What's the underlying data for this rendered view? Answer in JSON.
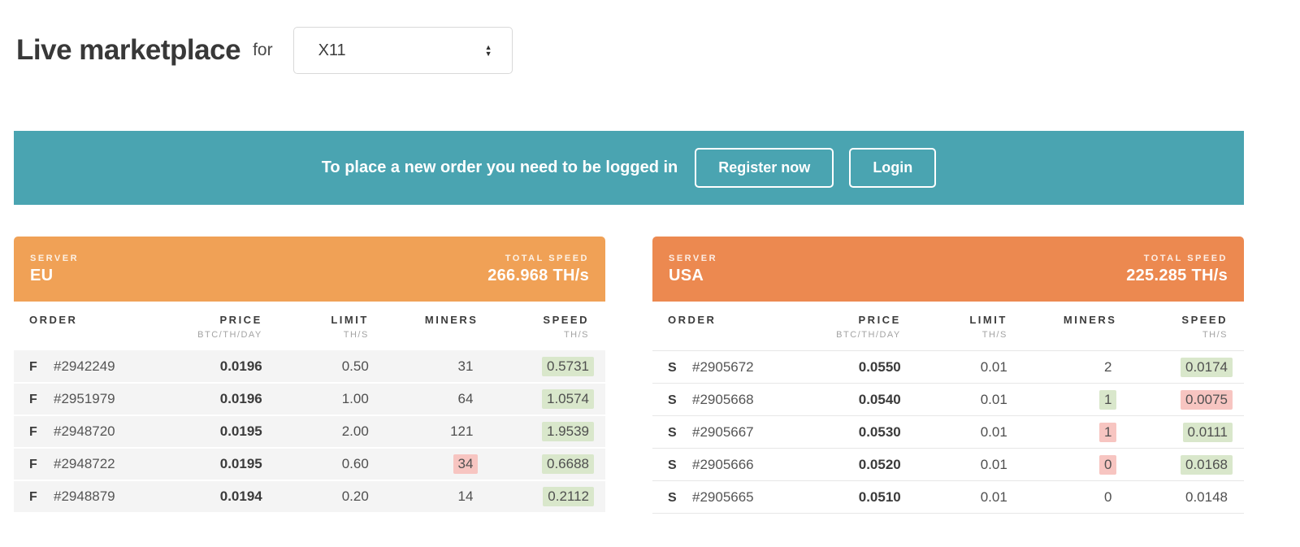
{
  "colors": {
    "banner_bg": "#4AA4B1",
    "eu_header_bg": "#F0A156",
    "usa_header_bg": "#EC8950",
    "highlight_green": "#D9E7CB",
    "highlight_red": "#F7C5C1"
  },
  "header": {
    "title": "Live marketplace",
    "for_label": "for",
    "algorithm": "X11"
  },
  "banner": {
    "message": "To place a new order you need to be logged in",
    "register_button": "Register now",
    "login_button": "Login"
  },
  "columns": {
    "order": "ORDER",
    "price": "PRICE",
    "price_unit": "BTC/TH/DAY",
    "limit": "LIMIT",
    "limit_unit": "TH/S",
    "miners": "MINERS",
    "speed": "SPEED",
    "speed_unit": "TH/S"
  },
  "servers": [
    {
      "server_label": "SERVER",
      "name": "EU",
      "total_label": "TOTAL SPEED",
      "total_speed": "266.968 TH/s",
      "rows": [
        {
          "type": "F",
          "id": "#2942249",
          "price": "0.0196",
          "limit": "0.50",
          "miners": "31",
          "miners_hl": "none",
          "speed": "0.5731",
          "speed_hl": "green"
        },
        {
          "type": "F",
          "id": "#2951979",
          "price": "0.0196",
          "limit": "1.00",
          "miners": "64",
          "miners_hl": "none",
          "speed": "1.0574",
          "speed_hl": "green"
        },
        {
          "type": "F",
          "id": "#2948720",
          "price": "0.0195",
          "limit": "2.00",
          "miners": "121",
          "miners_hl": "none",
          "speed": "1.9539",
          "speed_hl": "green"
        },
        {
          "type": "F",
          "id": "#2948722",
          "price": "0.0195",
          "limit": "0.60",
          "miners": "34",
          "miners_hl": "red",
          "speed": "0.6688",
          "speed_hl": "green"
        },
        {
          "type": "F",
          "id": "#2948879",
          "price": "0.0194",
          "limit": "0.20",
          "miners": "14",
          "miners_hl": "none",
          "speed": "0.2112",
          "speed_hl": "green"
        }
      ]
    },
    {
      "server_label": "SERVER",
      "name": "USA",
      "total_label": "TOTAL SPEED",
      "total_speed": "225.285 TH/s",
      "rows": [
        {
          "type": "S",
          "id": "#2905672",
          "price": "0.0550",
          "limit": "0.01",
          "miners": "2",
          "miners_hl": "none",
          "speed": "0.0174",
          "speed_hl": "green"
        },
        {
          "type": "S",
          "id": "#2905668",
          "price": "0.0540",
          "limit": "0.01",
          "miners": "1",
          "miners_hl": "green",
          "speed": "0.0075",
          "speed_hl": "red"
        },
        {
          "type": "S",
          "id": "#2905667",
          "price": "0.0530",
          "limit": "0.01",
          "miners": "1",
          "miners_hl": "red",
          "speed": "0.0111",
          "speed_hl": "green"
        },
        {
          "type": "S",
          "id": "#2905666",
          "price": "0.0520",
          "limit": "0.01",
          "miners": "0",
          "miners_hl": "red",
          "speed": "0.0168",
          "speed_hl": "green"
        },
        {
          "type": "S",
          "id": "#2905665",
          "price": "0.0510",
          "limit": "0.01",
          "miners": "0",
          "miners_hl": "none",
          "speed": "0.0148",
          "speed_hl": "none"
        }
      ]
    }
  ]
}
